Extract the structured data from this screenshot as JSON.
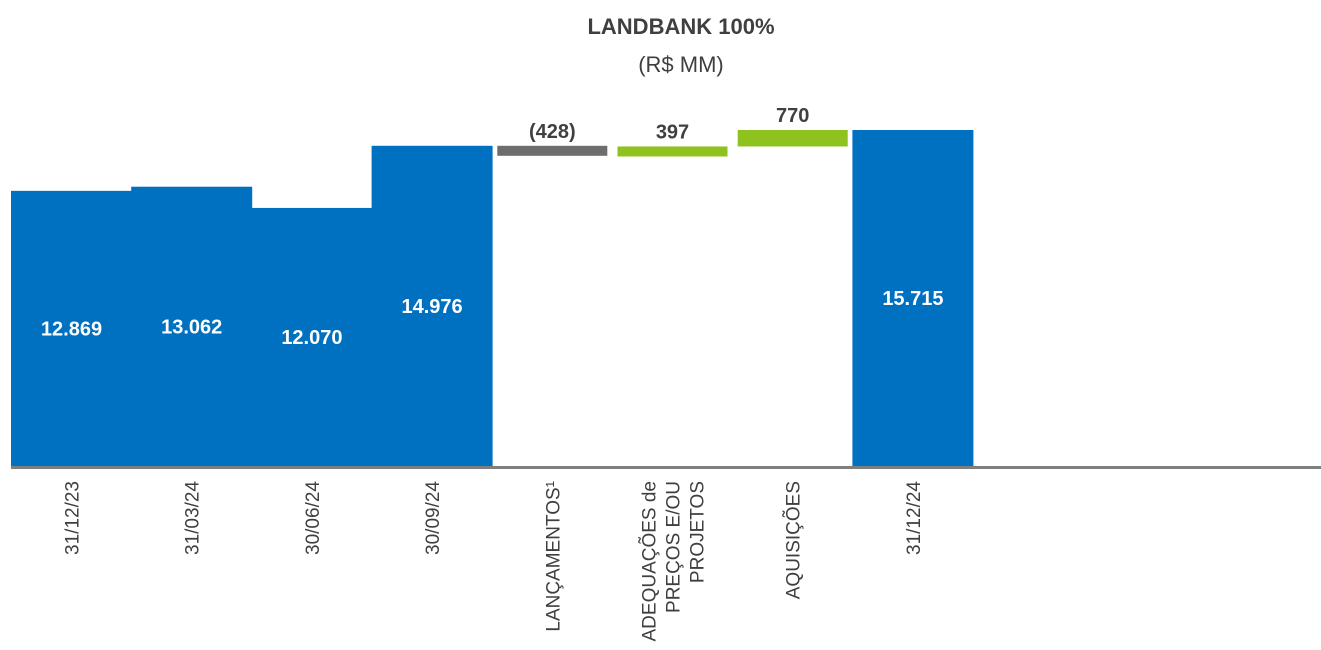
{
  "chart_data": {
    "type": "bar",
    "title": "LANDBANK 100%",
    "subtitle": "(R$ MM)",
    "categories": [
      [
        "31/12/23"
      ],
      [
        "31/03/24"
      ],
      [
        "30/06/24"
      ],
      [
        "30/09/24"
      ],
      [
        "LANÇAMENTOS¹"
      ],
      [
        "ADEQUAÇÕES de",
        "PREÇOS E/OU",
        "PROJETOS"
      ],
      [
        "AQUISIÇÕES"
      ],
      [
        "31/12/24"
      ]
    ],
    "bars": [
      {
        "kind": "total",
        "value": 12869,
        "label": "12.869"
      },
      {
        "kind": "total",
        "value": 13062,
        "label": "13.062"
      },
      {
        "kind": "total",
        "value": 12070,
        "label": "12.070"
      },
      {
        "kind": "total",
        "value": 14976,
        "label": "14.976"
      },
      {
        "kind": "delta",
        "value": -428,
        "label": "(428)"
      },
      {
        "kind": "delta",
        "value": 397,
        "label": "397"
      },
      {
        "kind": "delta",
        "value": 770,
        "label": "770"
      },
      {
        "kind": "total",
        "value": 15715,
        "label": "15.715"
      }
    ],
    "ylim": [
      0,
      15715
    ],
    "colors": {
      "total": "#0070c0",
      "increase": "#8dc21f",
      "decrease": "#6d6d6d",
      "axis": "#7f7f7f",
      "total_label": "#ffffff",
      "delta_label": "#404040"
    }
  }
}
